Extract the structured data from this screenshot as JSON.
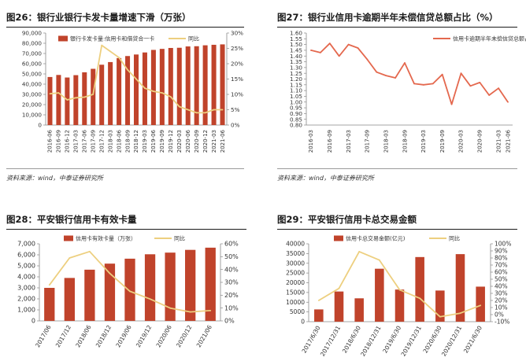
{
  "colors": {
    "bar": "#c0432b",
    "line_gold": "#edcf7f",
    "line_red": "#e4684e",
    "axis": "#888888",
    "rule": "#1a1a1a"
  },
  "panels": [
    {
      "title": "图26：银行业银行卡发卡量增速下滑（万张）",
      "source": "资料来源：wind，中泰证券研究所"
    },
    {
      "title": "图27：银行业信用卡逾期半年未偿信贷总额占比（%）",
      "source": "资料来源：wind，中泰证券研究所"
    },
    {
      "title": "图28：平安银行信用卡有效卡量",
      "source": ""
    },
    {
      "title": "图29：平安银行信用卡总交易金额",
      "source": ""
    }
  ],
  "chart_data": [
    {
      "type": "bar",
      "categories": [
        "2016-06",
        "2016-09",
        "2016-12",
        "2017-03",
        "2017-06",
        "2017-09",
        "2017-12",
        "2018-03",
        "2018-06",
        "2018-09",
        "2018-12",
        "2019-03",
        "2019-06",
        "2019-09",
        "2019-12",
        "2020-03",
        "2020-06",
        "2020-09",
        "2020-12",
        "2021-03",
        "2021-06"
      ],
      "series": [
        {
          "name": "银行卡发卡量:信用卡和借贷合一卡",
          "kind": "bar",
          "axis": "left",
          "values": [
            47000,
            49000,
            46500,
            48800,
            51600,
            55000,
            59000,
            61600,
            65500,
            67500,
            69000,
            71000,
            73500,
            74500,
            75400,
            75600,
            76900,
            77100,
            78000,
            78500,
            78900
          ]
        },
        {
          "name": "同比",
          "kind": "line",
          "axis": "right",
          "values": [
            10.2,
            10.5,
            8.2,
            8.9,
            9.1,
            10.0,
            26.0,
            24.0,
            22.0,
            18.0,
            15.0,
            12.0,
            11.0,
            10.5,
            9.2,
            6.0,
            5.0,
            4.0,
            4.0,
            5.0,
            5.0
          ]
        }
      ],
      "ylim_left": [
        0,
        90000
      ],
      "yticks_left": [
        "0",
        "10,000",
        "20,000",
        "30,000",
        "40,000",
        "50,000",
        "60,000",
        "70,000",
        "80,000",
        "90,000"
      ],
      "ylim_right": [
        0,
        30
      ],
      "yticks_right": [
        "0%",
        "5%",
        "10%",
        "15%",
        "20%",
        "25%",
        "30%"
      ],
      "x_tick_labels": [
        "2016-06",
        "2016-09",
        "2016-12",
        "2017-03",
        "2017-06",
        "2017-09",
        "2017-12",
        "2018-03",
        "2018-06",
        "2018-09",
        "2018-12",
        "2019-03",
        "2019-06",
        "2019-09",
        "2019-12",
        "2020-03",
        "2020-06",
        "2020-09",
        "2020-12",
        "2021-03",
        "2021-06"
      ],
      "legend_position": "top"
    },
    {
      "type": "line",
      "categories": [
        "2016-03",
        "2016-06",
        "2016-09",
        "2016-12",
        "2017-03",
        "2017-06",
        "2017-09",
        "2017-12",
        "2018-03",
        "2018-06",
        "2018-09",
        "2018-12",
        "2019-03",
        "2019-06",
        "2019-09",
        "2019-12",
        "2020-03",
        "2020-06",
        "2020-09",
        "2020-12",
        "2021-03",
        "2021-06"
      ],
      "series": [
        {
          "name": "信用卡逾期半年未偿信贷总额占比",
          "kind": "line",
          "axis": "left",
          "values": [
            1.45,
            1.43,
            1.51,
            1.4,
            1.5,
            1.47,
            1.37,
            1.26,
            1.23,
            1.21,
            1.34,
            1.16,
            1.15,
            1.16,
            1.24,
            0.98,
            1.25,
            1.14,
            1.17,
            1.06,
            1.12,
            1.0
          ]
        }
      ],
      "ylim_left": [
        0.8,
        1.6
      ],
      "yticks_left": [
        "0.80",
        "0.85",
        "0.90",
        "0.95",
        "1.00",
        "1.05",
        "1.10",
        "1.15",
        "1.20",
        "1.25",
        "1.30",
        "1.35",
        "1.40",
        "1.45",
        "1.50",
        "1.55",
        "1.60"
      ],
      "x_tick_labels": [
        "2016-03",
        "2016-09",
        "2017-03",
        "2017-09",
        "2018-03",
        "2018-09",
        "2019-03",
        "2019-09",
        "2020-03",
        "2020-09",
        "2021-03",
        "2021-06"
      ],
      "legend_position": "top-right"
    },
    {
      "type": "bar",
      "categories": [
        "2017/06",
        "2017/12",
        "2018/06",
        "2018/12",
        "2019/06",
        "2019/12",
        "2020/06",
        "2020/12",
        "2021/06"
      ],
      "series": [
        {
          "name": "信用卡有效卡量（万张）",
          "kind": "bar",
          "axis": "left",
          "values": [
            3000,
            3900,
            4650,
            5200,
            5650,
            6050,
            6200,
            6450,
            6650
          ]
        },
        {
          "name": "同比",
          "kind": "line",
          "axis": "right",
          "values": [
            28,
            49,
            54,
            37,
            23,
            17,
            10,
            7,
            8
          ]
        }
      ],
      "ylim_left": [
        0,
        7000
      ],
      "yticks_left": [
        "0",
        "1,000",
        "2,000",
        "3,000",
        "4,000",
        "5,000",
        "6,000",
        "7,000"
      ],
      "ylim_right": [
        0,
        60
      ],
      "yticks_right": [
        "0%",
        "10%",
        "20%",
        "30%",
        "40%",
        "50%",
        "60%"
      ],
      "x_tick_labels": [
        "2017/06",
        "2017/12",
        "2018/06",
        "2018/12",
        "2019/06",
        "2019/12",
        "2020/06",
        "2020/12",
        "2021/06"
      ],
      "legend_position": "top"
    },
    {
      "type": "bar",
      "categories": [
        "2017/6/30",
        "2017/12/31",
        "2018/6/30",
        "2018/12/31",
        "2019/6/30",
        "2019/12/31",
        "2020/6/30",
        "2020/12/31",
        "2021/6/30"
      ],
      "series": [
        {
          "name": "信用卡总交易金额(亿元)",
          "kind": "bar",
          "axis": "left",
          "values": [
            6300,
            15500,
            12000,
            27200,
            16500,
            33200,
            16000,
            34700,
            18000
          ]
        },
        {
          "name": "同比",
          "kind": "line",
          "axis": "right",
          "values": [
            20,
            37,
            89,
            77,
            35,
            23,
            -3,
            2,
            13
          ]
        }
      ],
      "ylim_left": [
        0,
        40000
      ],
      "yticks_left": [
        "0",
        "5000",
        "10000",
        "15000",
        "20000",
        "25000",
        "30000",
        "35000",
        "40000"
      ],
      "ylim_right": [
        -10,
        100
      ],
      "yticks_right": [
        "-10%",
        "0%",
        "10%",
        "20%",
        "30%",
        "40%",
        "50%",
        "60%",
        "70%",
        "80%",
        "90%",
        "100%"
      ],
      "x_tick_labels": [
        "2017/6/30",
        "2017/12/31",
        "2018/6/30",
        "2018/12/31",
        "2019/6/30",
        "2019/12/31",
        "2020/6/30",
        "2020/12/31",
        "2021/6/30"
      ],
      "legend_position": "top"
    }
  ]
}
